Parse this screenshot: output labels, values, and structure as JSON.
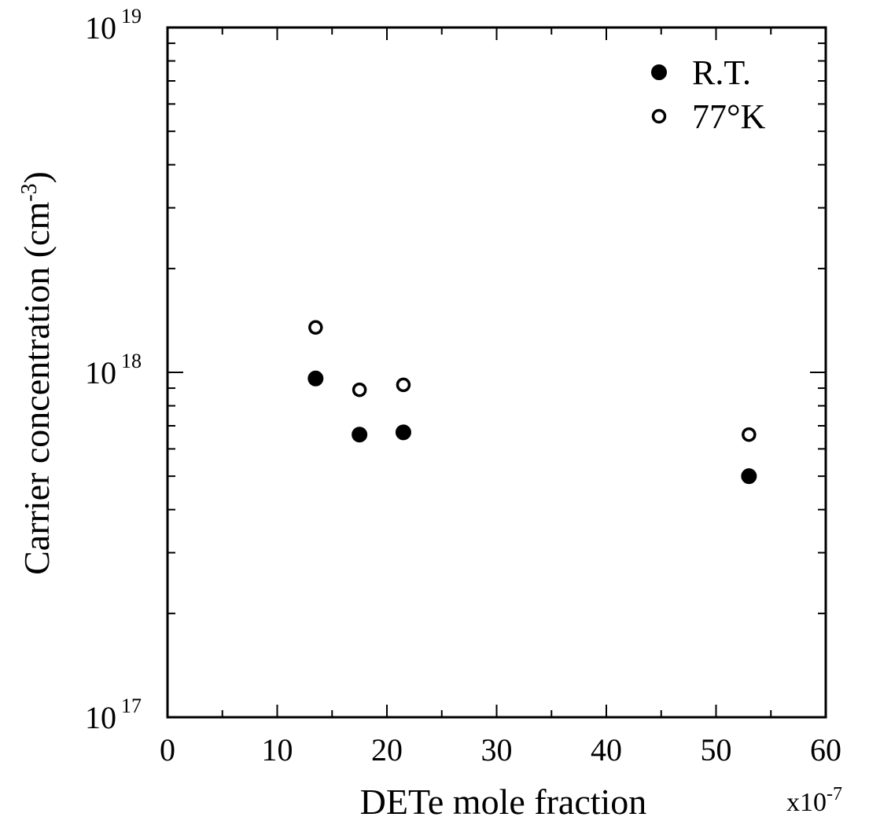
{
  "chart_data": {
    "type": "scatter",
    "x_axis": {
      "label": "DETe mole fraction",
      "multiplier": "x10-7",
      "multiplier_base": "x10",
      "multiplier_exp": "-7",
      "range": [
        0,
        60
      ],
      "ticks": [
        "0",
        "10",
        "20",
        "30",
        "40",
        "50",
        "60"
      ],
      "tick_values": [
        0,
        10,
        20,
        30,
        40,
        50,
        60
      ]
    },
    "y_axis": {
      "label": "Carrier concentration (cm-3)",
      "label_main": "Carrier concentration (cm",
      "label_sup": "-3",
      "label_close": ")",
      "scale": "log",
      "range": [
        1e+17,
        1e+19
      ],
      "ticks": [
        {
          "value": 1e+17,
          "base": "10",
          "exp": "17"
        },
        {
          "value": 1e+18,
          "base": "10",
          "exp": "18"
        },
        {
          "value": 1e+19,
          "base": "10",
          "exp": "19"
        }
      ]
    },
    "legend": {
      "placement": "top-right"
    },
    "series": [
      {
        "name": "R.T.",
        "marker": "filled-circle",
        "color": "#000000",
        "points": [
          {
            "x": 13.5,
            "y": 9.6e+17
          },
          {
            "x": 17.5,
            "y": 6.6e+17
          },
          {
            "x": 21.5,
            "y": 6.7e+17
          },
          {
            "x": 53.0,
            "y": 5e+17
          }
        ]
      },
      {
        "name": "77°K",
        "marker": "open-circle",
        "color": "#000000",
        "points": [
          {
            "x": 13.5,
            "y": 1.35e+18
          },
          {
            "x": 17.5,
            "y": 8.9e+17
          },
          {
            "x": 21.5,
            "y": 9.2e+17
          },
          {
            "x": 53.0,
            "y": 6.6e+17
          }
        ]
      }
    ],
    "grid": false
  }
}
